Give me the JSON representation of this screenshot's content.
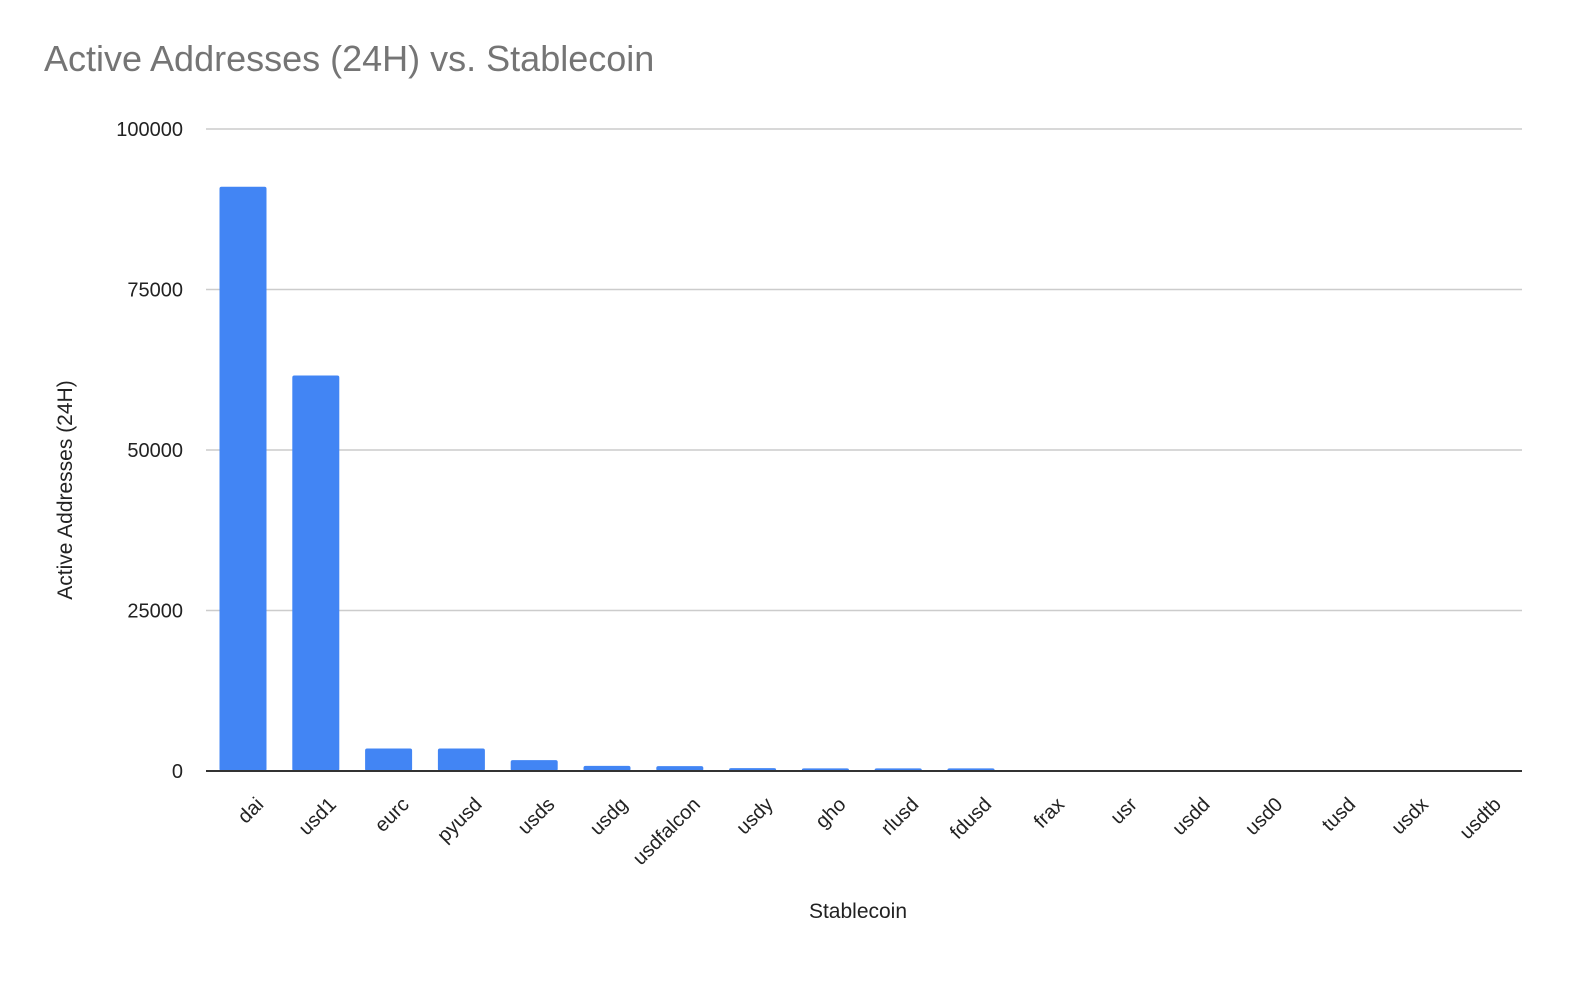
{
  "chart_data": {
    "type": "bar",
    "title": "Active Addresses (24H) vs. Stablecoin",
    "xlabel": "Stablecoin",
    "ylabel": "Active Addresses (24H)",
    "categories": [
      "dai",
      "usd1",
      "eurc",
      "pyusd",
      "usds",
      "usdg",
      "usdfalcon",
      "usdy",
      "gho",
      "rlusd",
      "fdusd",
      "frax",
      "usr",
      "usdd",
      "usd0",
      "tusd",
      "usdx",
      "usdtb"
    ],
    "values": [
      91000,
      61600,
      3500,
      3500,
      1700,
      800,
      750,
      450,
      400,
      400,
      400,
      100,
      100,
      100,
      100,
      100,
      100,
      50
    ],
    "ylim": [
      0,
      100000
    ],
    "yticks": [
      0,
      25000,
      50000,
      75000,
      100000
    ],
    "ytick_labels": [
      "0",
      "25000",
      "50000",
      "75000",
      "100000"
    ],
    "grid": true,
    "legend": "none",
    "colors": {
      "bar": "#4285f4",
      "grid": "#cccccc",
      "axis": "#333333"
    }
  }
}
